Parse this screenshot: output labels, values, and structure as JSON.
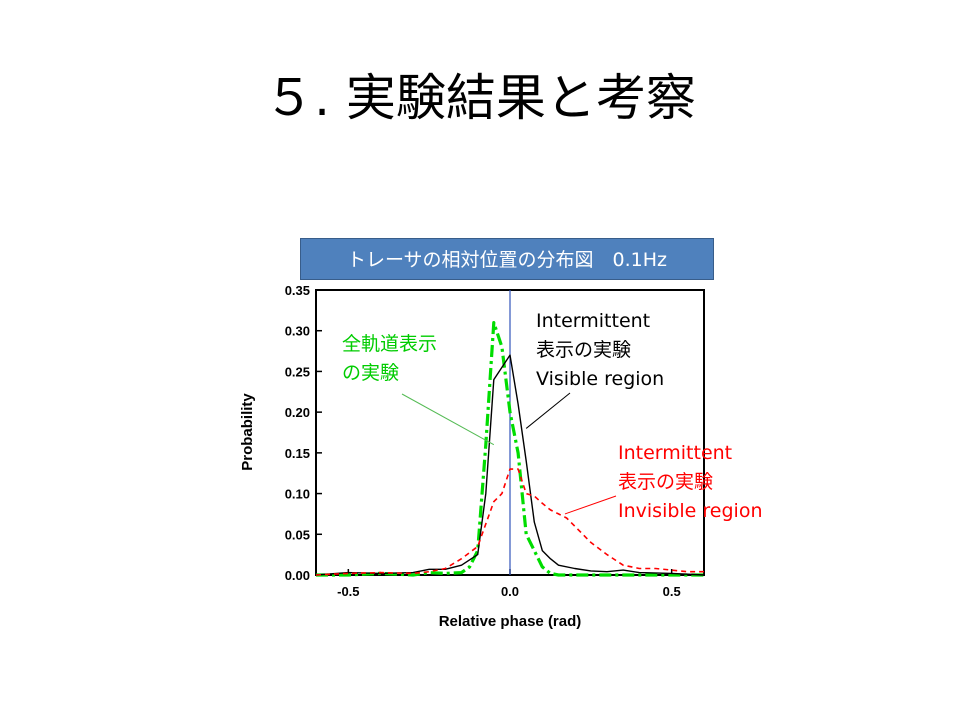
{
  "slide": {
    "title": "５. 実験結果と考察"
  },
  "chart_data": {
    "type": "line",
    "title": "トレーサの相対位置の分布図　0.1Hz",
    "xlabel": "Relative phase (rad)",
    "ylabel": "Probability",
    "xlim": [
      -0.6,
      0.6
    ],
    "ylim": [
      0,
      0.35
    ],
    "xticks": [
      "-0.5",
      "0.0",
      "0.5"
    ],
    "yticks": [
      "0.00",
      "0.05",
      "0.10",
      "0.15",
      "0.20",
      "0.25",
      "0.30",
      "0.35"
    ],
    "grid": false,
    "vertical_line_x": 0.0,
    "series": [
      {
        "name": "全軌道表示の実験",
        "color": "#00dd00",
        "style": "dashdot",
        "x": [
          -0.6,
          -0.5,
          -0.4,
          -0.3,
          -0.25,
          -0.2,
          -0.15,
          -0.125,
          -0.1,
          -0.075,
          -0.05,
          -0.025,
          0.0,
          0.025,
          0.05,
          0.075,
          0.1,
          0.125,
          0.15,
          0.2,
          0.3,
          0.4,
          0.5,
          0.6
        ],
        "y": [
          0.0,
          0.0,
          0.002,
          0.0,
          0.003,
          0.002,
          0.003,
          0.01,
          0.03,
          0.16,
          0.31,
          0.28,
          0.2,
          0.15,
          0.05,
          0.03,
          0.01,
          0.002,
          0.0,
          0.0,
          0.0,
          0.0,
          0.0,
          0.0
        ]
      },
      {
        "name": "Intermittent 表示の実験 Visible region",
        "color": "#000000",
        "style": "solid",
        "x": [
          -0.6,
          -0.5,
          -0.4,
          -0.3,
          -0.25,
          -0.2,
          -0.15,
          -0.1,
          -0.075,
          -0.05,
          -0.025,
          0.0,
          0.025,
          0.05,
          0.075,
          0.1,
          0.125,
          0.15,
          0.2,
          0.25,
          0.3,
          0.35,
          0.4,
          0.5,
          0.6
        ],
        "y": [
          0.0,
          0.003,
          0.002,
          0.003,
          0.007,
          0.007,
          0.012,
          0.025,
          0.1,
          0.24,
          0.255,
          0.27,
          0.21,
          0.14,
          0.065,
          0.03,
          0.02,
          0.012,
          0.008,
          0.005,
          0.004,
          0.006,
          0.003,
          0.002,
          0.0
        ]
      },
      {
        "name": "Intermittent 表示の実験 Invisible region",
        "color": "#ff0000",
        "style": "dashed",
        "x": [
          -0.6,
          -0.5,
          -0.4,
          -0.3,
          -0.25,
          -0.2,
          -0.15,
          -0.1,
          -0.05,
          -0.025,
          0.0,
          0.025,
          0.05,
          0.075,
          0.1,
          0.125,
          0.15,
          0.175,
          0.2,
          0.25,
          0.3,
          0.35,
          0.4,
          0.45,
          0.5,
          0.55,
          0.6
        ],
        "y": [
          0.0,
          0.002,
          0.003,
          0.002,
          0.004,
          0.008,
          0.02,
          0.035,
          0.09,
          0.1,
          0.13,
          0.13,
          0.1,
          0.097,
          0.088,
          0.08,
          0.075,
          0.07,
          0.06,
          0.04,
          0.025,
          0.012,
          0.008,
          0.008,
          0.006,
          0.004,
          0.004
        ]
      }
    ],
    "annotations": [
      {
        "lines": [
          "全軌道表示",
          "の実験"
        ],
        "color": "#00cc00",
        "target_x": -0.05,
        "target_y": 0.16
      },
      {
        "lines": [
          "Intermittent",
          "表示の実験",
          "Visible region"
        ],
        "color": "#000000",
        "target_x": 0.05,
        "target_y": 0.18
      },
      {
        "lines": [
          "Intermittent",
          "表示の実験",
          "Invisible region"
        ],
        "color": "#ff0000",
        "target_x": 0.17,
        "target_y": 0.075
      }
    ]
  }
}
